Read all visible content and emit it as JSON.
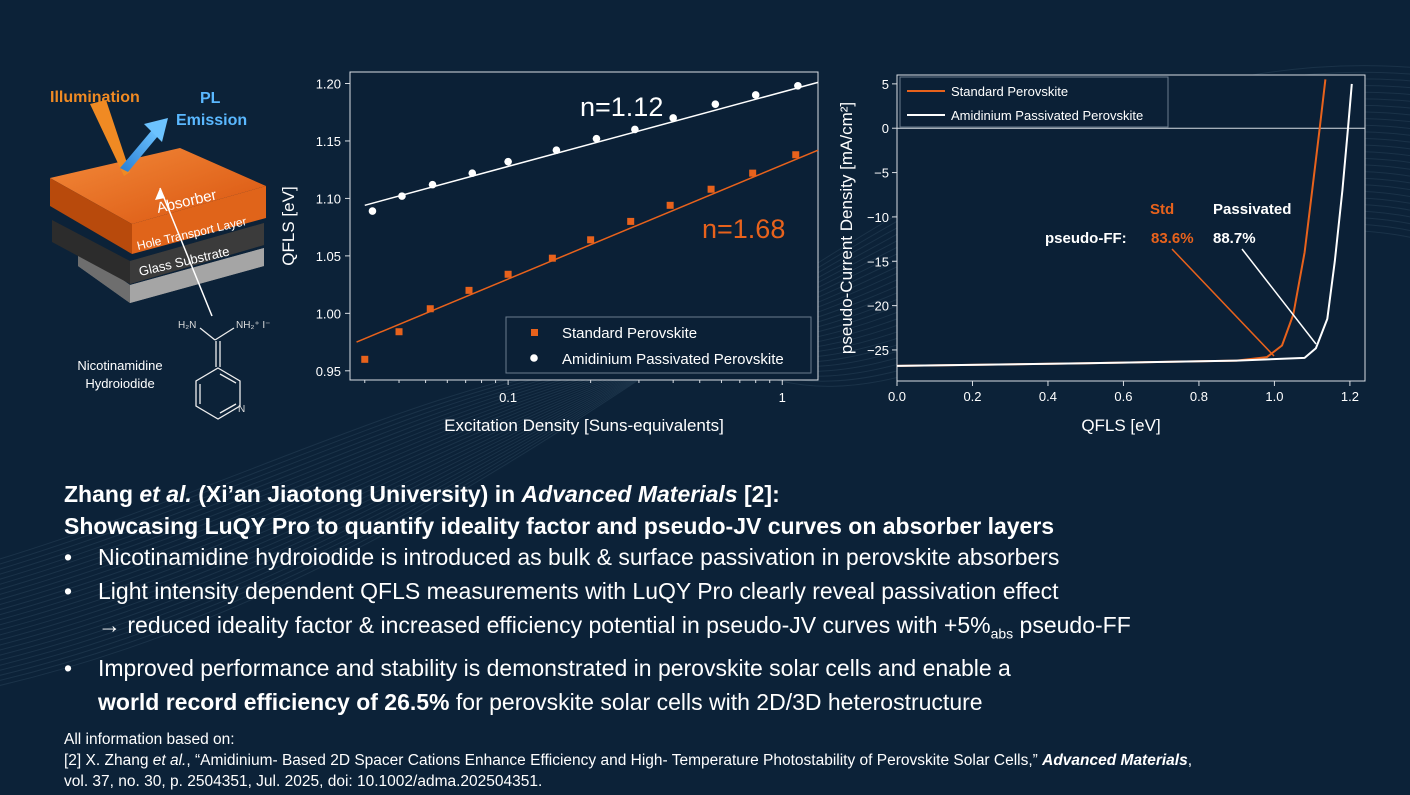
{
  "colors": {
    "background": "#0c2238",
    "orange": "#e8621c",
    "white": "#ffffff",
    "text_dark": "#222222"
  },
  "schematic": {
    "illumination": "Illumination",
    "pl_line1": "PL",
    "pl_line2": "Emission",
    "layer_absorber": "Absorber",
    "layer_htl": "Hole Transport Layer",
    "layer_glass": "Glass Substrate",
    "atom_h2n": "H₂N",
    "atom_nh2": "NH₂⁺ I⁻",
    "atom_n": "N",
    "molecule_line1": "Nicotinamidine",
    "molecule_line2": "Hydroiodide"
  },
  "chart_data": [
    {
      "type": "scatter",
      "xlabel": "Excitation Density [Suns-equivalents]",
      "ylabel": "QFLS [eV]",
      "xscale": "log",
      "xlim": [
        0.0265,
        1.35
      ],
      "ylim": [
        0.942,
        1.21
      ],
      "xticks": [
        {
          "v": 0.1,
          "label": "0.1"
        },
        {
          "v": 1,
          "label": "1"
        }
      ],
      "yticks": [
        0.95,
        1.0,
        1.05,
        1.1,
        1.15,
        1.2
      ],
      "ytick_labels": [
        "0.95",
        "1.00",
        "1.05",
        "1.10",
        "1.15",
        "1.20"
      ],
      "legend_position": "bottom-right",
      "series": [
        {
          "name": "Standard Perovskite",
          "color": "#e8621c",
          "marker": "square",
          "x": [
            0.03,
            0.04,
            0.052,
            0.072,
            0.1,
            0.145,
            0.2,
            0.28,
            0.39,
            0.55,
            0.78,
            1.12
          ],
          "y": [
            0.96,
            0.984,
            1.004,
            1.02,
            1.034,
            1.048,
            1.064,
            1.08,
            1.094,
            1.108,
            1.122,
            1.138
          ],
          "fit": {
            "x": [
              0.028,
              1.35
            ],
            "y": [
              0.975,
              1.142
            ]
          },
          "annotation": "n=1.68"
        },
        {
          "name": "Amidinium Passivated Perovskite",
          "color": "#ffffff",
          "marker": "circle",
          "x": [
            0.032,
            0.041,
            0.053,
            0.074,
            0.1,
            0.15,
            0.21,
            0.29,
            0.4,
            0.57,
            0.8,
            1.14
          ],
          "y": [
            1.089,
            1.102,
            1.112,
            1.122,
            1.132,
            1.142,
            1.152,
            1.16,
            1.17,
            1.182,
            1.19,
            1.198
          ],
          "fit": {
            "x": [
              0.03,
              1.35
            ],
            "y": [
              1.094,
              1.201
            ]
          },
          "annotation": "n=1.12"
        }
      ]
    },
    {
      "type": "line",
      "xlabel": "QFLS [eV]",
      "ylabel": "pseudo-Current Density [mA/cm²]",
      "xlim": [
        0.0,
        1.24
      ],
      "ylim": [
        -28.5,
        6
      ],
      "xticks": [
        0.0,
        0.2,
        0.4,
        0.6,
        0.8,
        1.0,
        1.2
      ],
      "xtick_labels": [
        "0.0",
        "0.2",
        "0.4",
        "0.6",
        "0.8",
        "1.0",
        "1.2"
      ],
      "yticks": [
        5,
        0,
        -5,
        -10,
        -15,
        -20,
        -25
      ],
      "ytick_labels": [
        "5",
        "0",
        "−5",
        "−10",
        "−15",
        "−20",
        "−25"
      ],
      "legend_position": "top-left",
      "series": [
        {
          "name": "Standard Perovskite",
          "color": "#e8621c",
          "x": [
            0.0,
            0.5,
            0.9,
            0.98,
            1.02,
            1.05,
            1.08,
            1.1,
            1.12,
            1.135
          ],
          "y": [
            -26.8,
            -26.5,
            -26.2,
            -25.8,
            -24.5,
            -21.0,
            -14.0,
            -7.0,
            0.0,
            5.5
          ]
        },
        {
          "name": "Amidinium Passivated Perovskite",
          "color": "#ffffff",
          "x": [
            0.0,
            0.5,
            0.9,
            1.08,
            1.11,
            1.14,
            1.16,
            1.18,
            1.195,
            1.205
          ],
          "y": [
            -26.8,
            -26.5,
            -26.2,
            -25.9,
            -24.8,
            -21.5,
            -15.0,
            -7.0,
            0.0,
            5.0
          ]
        }
      ],
      "annotations": {
        "std_label": "Std",
        "passivated_label": "Passivated",
        "ff_label": "pseudo-FF:",
        "std_ff": "83.6%",
        "passivated_ff": "88.7%"
      }
    }
  ],
  "text": {
    "headline_author": "Zhang",
    "headline_etal": "et al.",
    "headline_affil": " (Xi’an Jiaotong University) in ",
    "headline_journal": "Advanced Materials",
    "headline_ref": " [2]:",
    "headline_line2": "Showcasing LuQY Pro to quantify ideality factor and pseudo-JV curves on absorber layers",
    "bullet_marker": "•",
    "bullet1": "Nicotinamidine hydroiodide is introduced as bulk & surface passivation in perovskite absorbers",
    "bullet2": "Light intensity dependent QFLS measurements with LuQY Pro clearly reveal passivation effect",
    "bullet2b_pre": "→ reduced ideality factor & increased efficiency potential in pseudo-JV curves with +5%",
    "bullet2b_sub": "abs",
    "bullet2b_post": " pseudo-FF",
    "bullet3": "Improved performance and stability is demonstrated in perovskite solar cells and enable a",
    "bullet3b_bold": "world record efficiency of 26.5%",
    "bullet3b_rest": " for perovskite solar cells with 2D/3D heterostructure",
    "ref_intro": "All information based on:",
    "ref_pre": "[2] X. Zhang ",
    "ref_etal": "et al.",
    "ref_title": ", “Amidinium- Based 2D Spacer Cations Enhance Efficiency and High- Temperature Photostability of Perovskite Solar Cells,” ",
    "ref_journal": "Advanced Materials",
    "ref_post": ",",
    "ref_line2": "vol. 37, no. 30, p. 2504351, Jul. 2025, doi: 10.1002/adma.202504351."
  }
}
